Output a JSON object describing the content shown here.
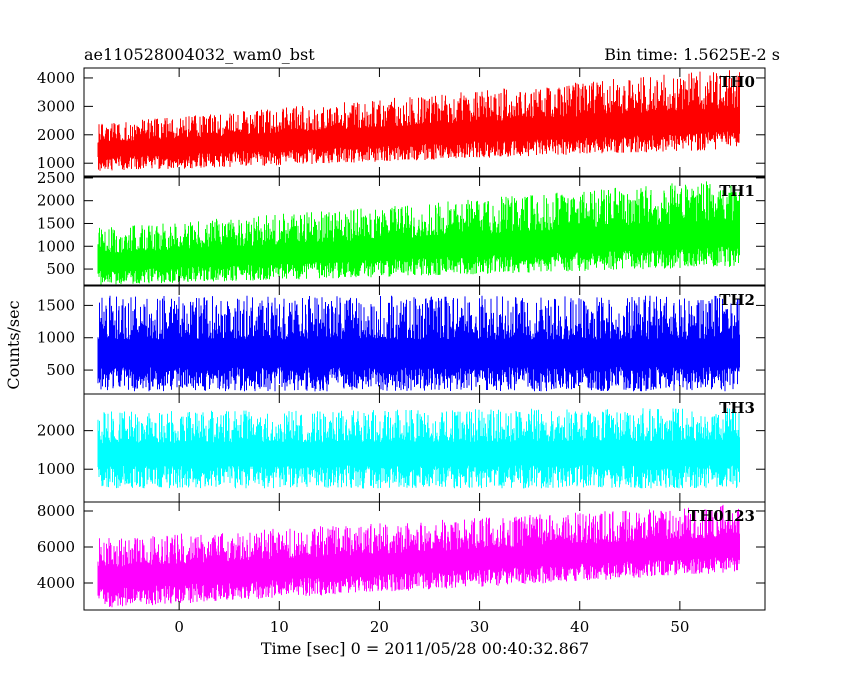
{
  "header": {
    "left_title": "ae110528004032_wam0_bst",
    "right_title": "Bin time: 1.5625E-2 s"
  },
  "axes": {
    "xlabel": "Time [sec] 0 = 2011/05/28 00:40:32.867",
    "ylabel": "Counts/sec"
  },
  "chart_data": {
    "type": "line",
    "title": "ae110528004032_wam0_bst",
    "subtitle": "Bin time: 1.5625E-2 s",
    "xlabel": "Time [sec] 0 = 2011/05/28 00:40:32.867",
    "ylabel": "Counts/sec",
    "xlim": [
      -9.5,
      58.5
    ],
    "x_range": [
      -8.1,
      56.0
    ],
    "x_ticks": [
      0,
      10,
      20,
      30,
      40,
      50
    ],
    "grid": false,
    "series": [
      {
        "name": "TH0",
        "color": "#ff0000",
        "ylim": [
          550,
          4350
        ],
        "y_ticks": [
          1000,
          2000,
          3000,
          4000
        ],
        "trend_start": 1500,
        "trend_end": 2500,
        "envelope_low": [
          700,
          1500
        ],
        "envelope_high": [
          2400,
          4350
        ]
      },
      {
        "name": "TH1",
        "color": "#00ff00",
        "ylim": [
          150,
          2520
        ],
        "y_ticks": [
          500,
          1000,
          1500,
          2000,
          2500
        ],
        "trend_start": 650,
        "trend_end": 1250,
        "envelope_low": [
          150,
          550
        ],
        "envelope_high": [
          1400,
          2500
        ]
      },
      {
        "name": "TH2",
        "color": "#0000ff",
        "ylim": [
          130,
          1800
        ],
        "y_ticks": [
          500,
          1000,
          1500
        ],
        "trend_start": 750,
        "trend_end": 750,
        "envelope_low": [
          170,
          170
        ],
        "envelope_high": [
          1650,
          1650
        ]
      },
      {
        "name": "TH3",
        "color": "#00ffff",
        "ylim": [
          150,
          2950
        ],
        "y_ticks": [
          1000,
          2000
        ],
        "trend_start": 1400,
        "trend_end": 1450,
        "envelope_low": [
          500,
          500
        ],
        "envelope_high": [
          2500,
          2600
        ]
      },
      {
        "name": "TH0123",
        "color": "#ff00ff",
        "ylim": [
          2500,
          8500
        ],
        "y_ticks": [
          4000,
          6000,
          8000
        ],
        "trend_start": 4300,
        "trend_end": 6000,
        "envelope_low": [
          2600,
          4600
        ],
        "envelope_high": [
          6500,
          8400
        ]
      }
    ]
  }
}
